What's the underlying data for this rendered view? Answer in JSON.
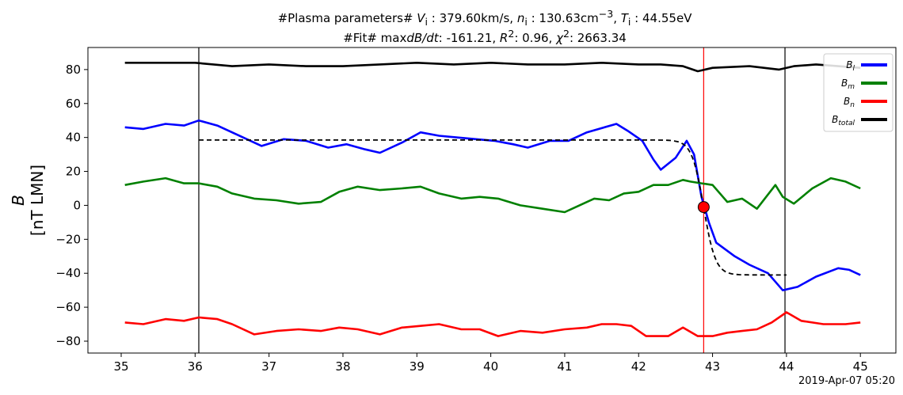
{
  "title": {
    "line1_prefix": "#Plasma parameters# ",
    "vi_label": "V",
    "vi_sub": "i",
    "vi_value": "379.60km/s",
    "ni_label": "n",
    "ni_sub": "i",
    "ni_value": "130.63cm",
    "ni_exp": "−3",
    "ti_label": "T",
    "ti_sub": "i",
    "ti_value": "44.55eV",
    "line2_prefix": "#Fit# max",
    "dbdt_label": "dB/dt",
    "dbdt_value": "-161.21",
    "r2_label": "R",
    "r2_exp": "2",
    "r2_value": "0.96",
    "chi_label": "χ",
    "chi_exp": "2",
    "chi_value": "2663.34"
  },
  "timestamp": "2019-Apr-07 05:20",
  "chart_data": {
    "type": "line",
    "xlim": [
      34.55,
      45.48
    ],
    "ylim": [
      -87,
      93
    ],
    "x_ticks": [
      35,
      36,
      37,
      38,
      39,
      40,
      41,
      42,
      43,
      44,
      45
    ],
    "y_ticks": [
      -80,
      -60,
      -40,
      -20,
      0,
      20,
      40,
      60,
      80
    ],
    "ylabel_main": "B",
    "ylabel_unit": "[nT LMN]",
    "grid": false,
    "legend_position": "top-right",
    "series": [
      {
        "name": "B_l",
        "legend_base": "B",
        "legend_sub": "l",
        "color": "#0000ff",
        "x": [
          35.05,
          35.3,
          35.6,
          35.85,
          36.05,
          36.3,
          36.5,
          36.9,
          37.2,
          37.5,
          37.8,
          38.05,
          38.3,
          38.5,
          38.8,
          39.05,
          39.3,
          39.55,
          39.8,
          40.05,
          40.3,
          40.5,
          40.8,
          41.05,
          41.3,
          41.7,
          41.85,
          42.05,
          42.2,
          42.3,
          42.5,
          42.65,
          42.75,
          42.85,
          42.95,
          43.05,
          43.3,
          43.5,
          43.75,
          43.95,
          44.15,
          44.4,
          44.7,
          44.85,
          45.0
        ],
        "y": [
          46,
          45,
          48,
          47,
          50,
          47,
          43,
          35,
          39,
          38,
          34,
          36,
          33,
          31,
          37,
          43,
          41,
          40,
          39,
          38,
          36,
          34,
          38,
          38,
          43,
          48,
          44,
          38,
          27,
          21,
          28,
          38,
          30,
          5,
          -10,
          -22,
          -30,
          -35,
          -40,
          -50,
          -48,
          -42,
          -37,
          -38,
          -41
        ]
      },
      {
        "name": "B_m",
        "legend_base": "B",
        "legend_sub": "m",
        "color": "#008000",
        "x": [
          35.05,
          35.3,
          35.6,
          35.85,
          36.05,
          36.3,
          36.5,
          36.8,
          37.1,
          37.4,
          37.7,
          37.95,
          38.2,
          38.5,
          38.8,
          39.05,
          39.3,
          39.6,
          39.85,
          40.1,
          40.4,
          40.7,
          41.0,
          41.2,
          41.4,
          41.6,
          41.8,
          42.0,
          42.2,
          42.4,
          42.6,
          42.7,
          42.85,
          43.0,
          43.2,
          43.4,
          43.6,
          43.85,
          43.95,
          44.1,
          44.35,
          44.6,
          44.8,
          45.0
        ],
        "y": [
          12,
          14,
          16,
          13,
          13,
          11,
          7,
          4,
          3,
          1,
          2,
          8,
          11,
          9,
          10,
          11,
          7,
          4,
          5,
          4,
          0,
          -2,
          -4,
          0,
          4,
          3,
          7,
          8,
          12,
          12,
          15,
          14,
          13,
          12,
          2,
          4,
          -2,
          12,
          5,
          1,
          10,
          16,
          14,
          10
        ]
      },
      {
        "name": "B_n",
        "legend_base": "B",
        "legend_sub": "n",
        "color": "#ff0000",
        "x": [
          35.05,
          35.3,
          35.6,
          35.85,
          36.05,
          36.3,
          36.5,
          36.8,
          37.1,
          37.4,
          37.7,
          37.95,
          38.2,
          38.5,
          38.8,
          39.05,
          39.3,
          39.6,
          39.85,
          40.1,
          40.4,
          40.7,
          41.0,
          41.3,
          41.5,
          41.7,
          41.9,
          42.1,
          42.4,
          42.6,
          42.8,
          43.0,
          43.2,
          43.4,
          43.6,
          43.8,
          44.0,
          44.2,
          44.5,
          44.8,
          45.0
        ],
        "y": [
          -69,
          -70,
          -67,
          -68,
          -66,
          -67,
          -70,
          -76,
          -74,
          -73,
          -74,
          -72,
          -73,
          -76,
          -72,
          -71,
          -70,
          -73,
          -73,
          -77,
          -74,
          -75,
          -73,
          -72,
          -70,
          -70,
          -71,
          -77,
          -77,
          -72,
          -77,
          -77,
          -75,
          -74,
          -73,
          -69,
          -63,
          -68,
          -70,
          -70,
          -69
        ]
      },
      {
        "name": "B_total",
        "legend_base": "B",
        "legend_sub": "total",
        "color": "#000000",
        "x": [
          35.05,
          35.5,
          36.0,
          36.5,
          37.0,
          37.5,
          38.0,
          38.5,
          39.0,
          39.5,
          40.0,
          40.5,
          41.0,
          41.5,
          42.0,
          42.3,
          42.6,
          42.8,
          43.0,
          43.5,
          43.9,
          44.1,
          44.4,
          44.7,
          45.0
        ],
        "y": [
          84,
          84,
          84,
          82,
          83,
          82,
          82,
          83,
          84,
          83,
          84,
          83,
          83,
          84,
          83,
          83,
          82,
          79,
          81,
          82,
          80,
          82,
          83,
          82,
          81
        ]
      }
    ],
    "fit_curve": {
      "style": "dashed",
      "color": "#000000",
      "x_start": 36.05,
      "x_end": 44.0,
      "upper": 38.5,
      "lower": -41,
      "center": 42.88,
      "width": 0.16
    },
    "vertical_lines": [
      {
        "x": 36.05,
        "color": "#000000"
      },
      {
        "x": 42.88,
        "color": "#ff0000"
      },
      {
        "x": 43.98,
        "color": "#000000"
      }
    ],
    "marker": {
      "x": 42.88,
      "y": -1,
      "color": "#ff0000"
    }
  }
}
